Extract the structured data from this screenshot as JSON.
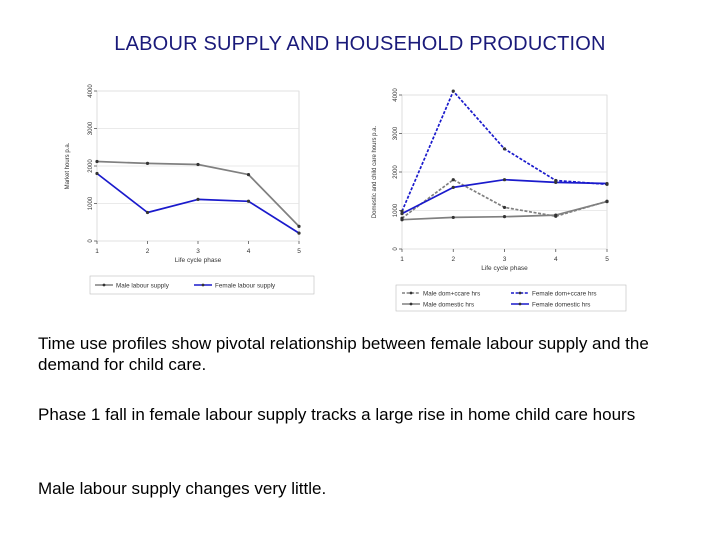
{
  "slide": {
    "title": "LABOUR SUPPLY AND HOUSEHOLD PRODUCTION",
    "paragraphs": [
      "Time use profiles show pivotal relationship between female labour supply and the demand for child care.",
      "Phase 1 fall in female labour supply tracks a large rise in home child care hours",
      "Male labour supply changes very little."
    ]
  },
  "chart_data": [
    {
      "type": "line",
      "xlabel": "Life cycle phase",
      "ylabel": "Market hours p.a.",
      "x": [
        1,
        2,
        3,
        4,
        5
      ],
      "xlim": [
        1,
        5
      ],
      "ylim": [
        0,
        4000
      ],
      "yticks": [
        0,
        1000,
        2000,
        3000,
        4000
      ],
      "legend_position": "bottom",
      "series": [
        {
          "name": "Male labour supply",
          "color": "#808080",
          "dash": "solid",
          "values": [
            2120,
            2070,
            2040,
            1770,
            390
          ]
        },
        {
          "name": "Female labour supply",
          "color": "#1a1acc",
          "dash": "solid",
          "values": [
            1800,
            760,
            1110,
            1060,
            210
          ]
        }
      ]
    },
    {
      "type": "line",
      "xlabel": "Life cycle phase",
      "ylabel": "Domestic and child care hours p.a.",
      "x": [
        1,
        2,
        3,
        4,
        5
      ],
      "xlim": [
        1,
        5
      ],
      "ylim": [
        0,
        4000
      ],
      "yticks": [
        0,
        1000,
        2000,
        3000,
        4000
      ],
      "legend_position": "bottom",
      "series": [
        {
          "name": "Male dom+ccare hrs",
          "color": "#808080",
          "dash": "dashed",
          "values": [
            800,
            1800,
            1080,
            850,
            1240
          ]
        },
        {
          "name": "Female dom+ccare hrs",
          "color": "#1a1acc",
          "dash": "dashed",
          "values": [
            980,
            4100,
            2600,
            1780,
            1680
          ]
        },
        {
          "name": "Male domestic hrs",
          "color": "#808080",
          "dash": "solid",
          "values": [
            760,
            820,
            840,
            880,
            1230
          ]
        },
        {
          "name": "Female domestic hrs",
          "color": "#1a1acc",
          "dash": "solid",
          "values": [
            920,
            1600,
            1800,
            1730,
            1700
          ]
        }
      ]
    }
  ]
}
